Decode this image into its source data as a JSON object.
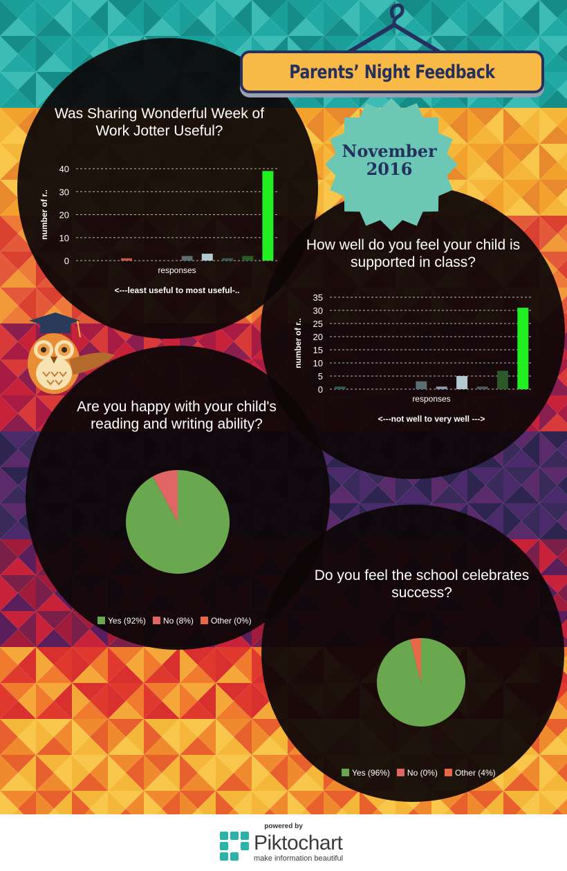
{
  "header": {
    "title": "Parents’ Night Feedback",
    "date_line1": "November",
    "date_line2": "2016"
  },
  "colors": {
    "yes": "#6aa84f",
    "no": "#e06666",
    "other": "#e8694a",
    "bright_green": "#22ee22",
    "navy": "#24305e"
  },
  "chart_data": [
    {
      "type": "bar",
      "title": "Was Sharing Wonderful Week of Work Jotter Useful?",
      "ylabel": "number of r..",
      "xlabel": "responses",
      "note": "<---least useful to most useful-..",
      "ylim": [
        0,
        40
      ],
      "yticks": [
        0,
        10,
        20,
        30,
        40
      ],
      "values": [
        0,
        0,
        1,
        0,
        0,
        2,
        3,
        1,
        2,
        39
      ],
      "colors": [
        "#555555",
        "#555555",
        "#c65a3a",
        "#555555",
        "#555555",
        "#5a6d72",
        "#b4c8d2",
        "#3a5a50",
        "#2a5a2a",
        "#22ee22"
      ]
    },
    {
      "type": "bar",
      "title": "How well do you feel your child is supported in class?",
      "ylabel": "number of r..",
      "xlabel": "responses",
      "note": "<---not well to very well --->",
      "ylim": [
        0,
        35
      ],
      "yticks": [
        0,
        5,
        10,
        15,
        20,
        25,
        30,
        35
      ],
      "values": [
        1,
        0,
        0,
        0,
        3,
        1,
        5,
        1,
        7,
        31
      ],
      "colors": [
        "#2a5a5a",
        "#555555",
        "#555555",
        "#555555",
        "#5a6d72",
        "#8a9aaa",
        "#b4c8d2",
        "#4a5a60",
        "#2a5a2a",
        "#22ee22"
      ]
    },
    {
      "type": "pie",
      "title": "Are you happy with your child's reading and writing ability?",
      "slices": [
        {
          "label": "Yes (92%)",
          "value": 92
        },
        {
          "label": "No (8%)",
          "value": 8
        },
        {
          "label": "Other (0%)",
          "value": 0
        }
      ]
    },
    {
      "type": "pie",
      "title": "Do you feel the school celebrates success?",
      "slices": [
        {
          "label": "Yes (96%)",
          "value": 96
        },
        {
          "label": "No (0%)",
          "value": 0
        },
        {
          "label": "Other (4%)",
          "value": 4
        }
      ]
    }
  ],
  "footer": {
    "powered_by": "powered by",
    "brand": "Piktochart",
    "tagline": "make information beautiful"
  }
}
